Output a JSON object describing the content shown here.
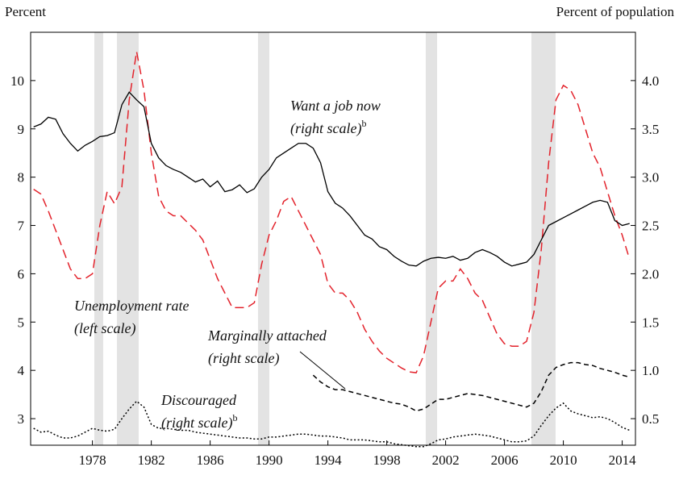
{
  "chart_data": {
    "type": "line",
    "y_label": "Percent",
    "y2_label": "Percent of population",
    "x": [
      1974,
      1974.5,
      1975,
      1975.5,
      1976,
      1976.5,
      1977,
      1977.5,
      1978,
      1978.5,
      1979,
      1979.5,
      1980,
      1980.5,
      1981,
      1981.5,
      1982,
      1982.5,
      1983,
      1983.5,
      1984,
      1984.5,
      1985,
      1985.5,
      1986,
      1986.5,
      1987,
      1987.5,
      1988,
      1988.5,
      1989,
      1989.5,
      1990,
      1990.5,
      1991,
      1991.5,
      1992,
      1992.5,
      1993,
      1993.5,
      1994,
      1994.5,
      1995,
      1995.5,
      1996,
      1996.5,
      1997,
      1997.5,
      1998,
      1998.5,
      1999,
      1999.5,
      2000,
      2000.5,
      2001,
      2001.5,
      2002,
      2002.5,
      2003,
      2003.5,
      2004,
      2004.5,
      2005,
      2005.5,
      2006,
      2006.5,
      2007,
      2007.5,
      2008,
      2008.5,
      2009,
      2009.5,
      2010,
      2010.5,
      2011,
      2011.5,
      2012,
      2012.5,
      2013,
      2013.5,
      2014,
      2014.5
    ],
    "series": [
      {
        "color": "#e3232c",
        "dash": "long",
        "axis": "y",
        "values": [
          7.75,
          7.65,
          7.3,
          6.9,
          6.5,
          6.1,
          5.9,
          5.9,
          6.0,
          7.0,
          7.7,
          7.45,
          7.8,
          9.6,
          10.6,
          9.8,
          8.5,
          7.6,
          7.3,
          7.2,
          7.2,
          7.05,
          6.9,
          6.7,
          6.3,
          5.9,
          5.6,
          5.3,
          5.3,
          5.3,
          5.4,
          6.2,
          6.8,
          7.1,
          7.5,
          7.6,
          7.3,
          7.0,
          6.7,
          6.4,
          5.8,
          5.6,
          5.6,
          5.45,
          5.2,
          4.85,
          4.6,
          4.4,
          4.25,
          4.15,
          4.05,
          3.97,
          3.95,
          4.3,
          5.0,
          5.7,
          5.85,
          5.85,
          6.1,
          5.9,
          5.6,
          5.45,
          5.1,
          4.75,
          4.55,
          4.5,
          4.5,
          4.6,
          5.2,
          6.5,
          8.3,
          9.6,
          9.9,
          9.8,
          9.5,
          9.0,
          8.5,
          8.2,
          7.7,
          7.2,
          6.8,
          6.3
        ]
      },
      {
        "color": "#000000",
        "dash": "solid",
        "axis": "y2",
        "values": [
          3.52,
          3.55,
          3.62,
          3.6,
          3.45,
          3.35,
          3.27,
          3.33,
          3.37,
          3.42,
          3.43,
          3.46,
          3.75,
          3.88,
          3.8,
          3.73,
          3.35,
          3.2,
          3.12,
          3.08,
          3.05,
          3.0,
          2.95,
          2.98,
          2.9,
          2.96,
          2.85,
          2.87,
          2.92,
          2.84,
          2.88,
          3.0,
          3.08,
          3.2,
          3.25,
          3.3,
          3.35,
          3.35,
          3.3,
          3.15,
          2.85,
          2.73,
          2.68,
          2.6,
          2.5,
          2.4,
          2.36,
          2.28,
          2.25,
          2.18,
          2.13,
          2.09,
          2.08,
          2.13,
          2.16,
          2.17,
          2.16,
          2.18,
          2.14,
          2.16,
          2.22,
          2.25,
          2.22,
          2.18,
          2.12,
          2.08,
          2.1,
          2.12,
          2.2,
          2.35,
          2.5,
          2.54,
          2.58,
          2.62,
          2.66,
          2.7,
          2.74,
          2.76,
          2.74,
          2.55,
          2.5,
          2.52
        ]
      },
      {
        "color": "#000000",
        "dash": "short",
        "axis": "y2",
        "values": [
          null,
          null,
          null,
          null,
          null,
          null,
          null,
          null,
          null,
          null,
          null,
          null,
          null,
          null,
          null,
          null,
          null,
          null,
          null,
          null,
          null,
          null,
          null,
          null,
          null,
          null,
          null,
          null,
          null,
          null,
          null,
          null,
          null,
          null,
          null,
          null,
          null,
          null,
          0.95,
          0.88,
          0.83,
          0.8,
          0.8,
          0.78,
          0.76,
          0.74,
          0.72,
          0.7,
          0.68,
          0.66,
          0.65,
          0.62,
          0.58,
          0.6,
          0.65,
          0.7,
          0.7,
          0.72,
          0.74,
          0.76,
          0.75,
          0.74,
          0.72,
          0.7,
          0.68,
          0.66,
          0.64,
          0.62,
          0.66,
          0.78,
          0.95,
          1.03,
          1.06,
          1.08,
          1.08,
          1.06,
          1.05,
          1.02,
          1.0,
          0.98,
          0.95,
          0.93
        ]
      },
      {
        "color": "#000000",
        "dash": "dotted",
        "axis": "y2",
        "values": [
          0.4,
          0.36,
          0.37,
          0.33,
          0.3,
          0.3,
          0.32,
          0.36,
          0.4,
          0.38,
          0.37,
          0.39,
          0.5,
          0.6,
          0.68,
          0.62,
          0.44,
          0.4,
          0.4,
          0.39,
          0.38,
          0.38,
          0.36,
          0.35,
          0.34,
          0.33,
          0.32,
          0.31,
          0.3,
          0.3,
          0.29,
          0.29,
          0.31,
          0.31,
          0.32,
          0.33,
          0.34,
          0.34,
          0.33,
          0.32,
          0.32,
          0.31,
          0.3,
          0.28,
          0.28,
          0.28,
          0.27,
          0.26,
          0.26,
          0.24,
          0.23,
          0.22,
          0.21,
          0.21,
          0.24,
          0.28,
          0.29,
          0.31,
          0.32,
          0.33,
          0.34,
          0.33,
          0.32,
          0.3,
          0.28,
          0.26,
          0.26,
          0.27,
          0.32,
          0.43,
          0.53,
          0.61,
          0.66,
          0.58,
          0.55,
          0.53,
          0.51,
          0.52,
          0.5,
          0.46,
          0.41,
          0.38
        ]
      }
    ],
    "shading": [
      [
        1978.13,
        1978.73
      ],
      [
        1979.66,
        1981.14
      ],
      [
        1989.25,
        1990.02
      ],
      [
        2000.65,
        2001.42
      ],
      [
        2007.83,
        2009.47
      ]
    ],
    "shading_color": "#e3e3e3",
    "xlim": [
      1973.8,
      2014.9
    ],
    "xticks": [
      1978,
      1982,
      1986,
      1990,
      1994,
      1998,
      2002,
      2006,
      2010,
      2014
    ],
    "ylim": [
      2.45,
      11.0
    ],
    "yticks": [
      3,
      4,
      5,
      6,
      7,
      8,
      9,
      10
    ],
    "y2lim": [
      0.225,
      4.5
    ],
    "y2ticks": [
      0.5,
      {
        "value": 1,
        "label": "1.0"
      },
      1.5,
      {
        "value": 2,
        "label": "2.0"
      },
      2.5,
      {
        "value": 3,
        "label": "3.0"
      },
      3.5,
      {
        "value": 4,
        "label": "4.0"
      }
    ],
    "annotations": [
      {
        "lines": [
          "Want a job now",
          "(right scale)"
        ],
        "note": "b"
      },
      {
        "lines": [
          "Unemployment rate",
          "(left scale)"
        ]
      },
      {
        "lines": [
          "Marginally attached",
          "(right scale)"
        ]
      },
      {
        "lines": [
          "Discouraged",
          "(right scale)"
        ],
        "note": "b"
      }
    ]
  }
}
